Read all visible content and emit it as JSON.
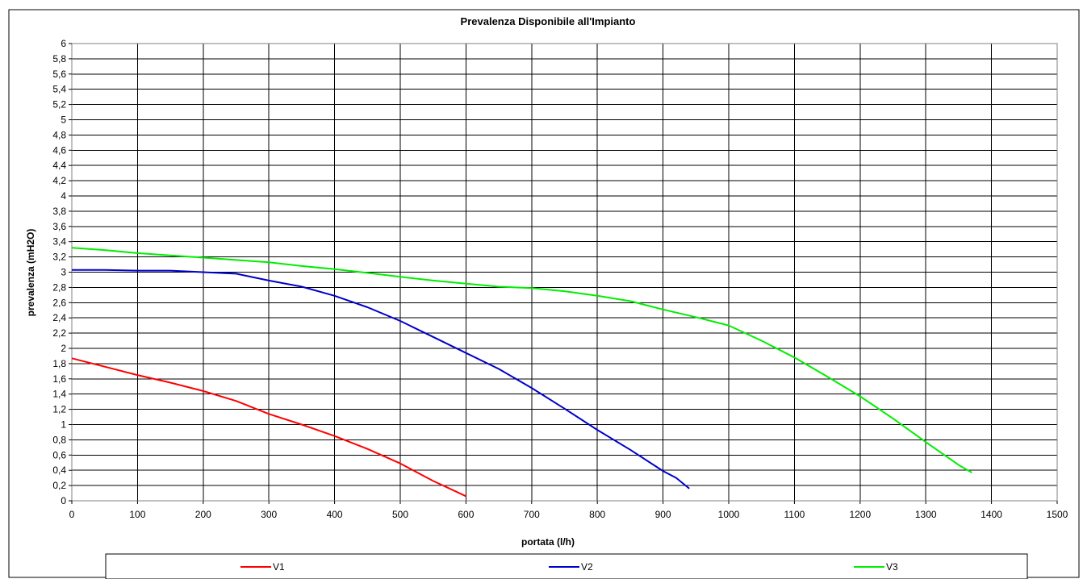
{
  "chart_data": {
    "type": "line",
    "title": "Prevalenza Disponibile all'Impianto",
    "xlabel": "portata (l/h)",
    "ylabel": "prevalenza (mH2O)",
    "xlim": [
      0,
      1500
    ],
    "ylim": [
      0,
      6
    ],
    "xticks": [
      0,
      100,
      200,
      300,
      400,
      500,
      600,
      700,
      800,
      900,
      1000,
      1100,
      1200,
      1300,
      1400,
      1500
    ],
    "yticks": [
      0,
      0.2,
      0.4,
      0.6,
      0.8,
      1,
      1.2,
      1.4,
      1.6,
      1.8,
      2,
      2.2,
      2.4,
      2.6,
      2.8,
      3,
      3.2,
      3.4,
      3.6,
      3.8,
      4,
      4.2,
      4.4,
      4.6,
      4.8,
      5,
      5.2,
      5.4,
      5.6,
      5.8,
      6
    ],
    "ytick_labels": [
      "0",
      "0,2",
      "0,4",
      "0,6",
      "0,8",
      "1",
      "1,2",
      "1,4",
      "1,6",
      "1,8",
      "2",
      "2,2",
      "2,4",
      "2,6",
      "2,8",
      "3",
      "3,2",
      "3,4",
      "3,6",
      "3,8",
      "4",
      "4,2",
      "4,4",
      "4,6",
      "4,8",
      "5",
      "5,2",
      "5,4",
      "5,6",
      "5,8",
      "6"
    ],
    "grid": true,
    "legend_position": "bottom",
    "series": [
      {
        "name": "V1",
        "color": "#ff0000",
        "points": [
          [
            0,
            1.87
          ],
          [
            50,
            1.76
          ],
          [
            100,
            1.65
          ],
          [
            150,
            1.55
          ],
          [
            200,
            1.44
          ],
          [
            250,
            1.31
          ],
          [
            300,
            1.14
          ],
          [
            350,
            1.0
          ],
          [
            400,
            0.85
          ],
          [
            450,
            0.68
          ],
          [
            500,
            0.49
          ],
          [
            550,
            0.26
          ],
          [
            600,
            0.06
          ]
        ]
      },
      {
        "name": "V2",
        "color": "#0000cc",
        "points": [
          [
            0,
            3.03
          ],
          [
            50,
            3.03
          ],
          [
            100,
            3.02
          ],
          [
            150,
            3.02
          ],
          [
            200,
            3.0
          ],
          [
            250,
            2.98
          ],
          [
            300,
            2.89
          ],
          [
            350,
            2.81
          ],
          [
            400,
            2.69
          ],
          [
            450,
            2.54
          ],
          [
            500,
            2.36
          ],
          [
            550,
            2.15
          ],
          [
            600,
            1.94
          ],
          [
            650,
            1.73
          ],
          [
            700,
            1.48
          ],
          [
            750,
            1.21
          ],
          [
            800,
            0.93
          ],
          [
            850,
            0.67
          ],
          [
            900,
            0.39
          ],
          [
            920,
            0.3
          ],
          [
            940,
            0.16
          ]
        ]
      },
      {
        "name": "V3",
        "color": "#00ee00",
        "points": [
          [
            0,
            3.32
          ],
          [
            50,
            3.29
          ],
          [
            100,
            3.25
          ],
          [
            150,
            3.22
          ],
          [
            200,
            3.19
          ],
          [
            250,
            3.16
          ],
          [
            300,
            3.13
          ],
          [
            350,
            3.08
          ],
          [
            400,
            3.04
          ],
          [
            450,
            2.99
          ],
          [
            500,
            2.94
          ],
          [
            550,
            2.89
          ],
          [
            600,
            2.85
          ],
          [
            650,
            2.81
          ],
          [
            700,
            2.79
          ],
          [
            750,
            2.75
          ],
          [
            800,
            2.69
          ],
          [
            850,
            2.62
          ],
          [
            900,
            2.51
          ],
          [
            950,
            2.41
          ],
          [
            1000,
            2.3
          ],
          [
            1050,
            2.1
          ],
          [
            1100,
            1.88
          ],
          [
            1150,
            1.63
          ],
          [
            1200,
            1.37
          ],
          [
            1250,
            1.08
          ],
          [
            1300,
            0.77
          ],
          [
            1350,
            0.47
          ],
          [
            1370,
            0.37
          ]
        ]
      }
    ]
  }
}
